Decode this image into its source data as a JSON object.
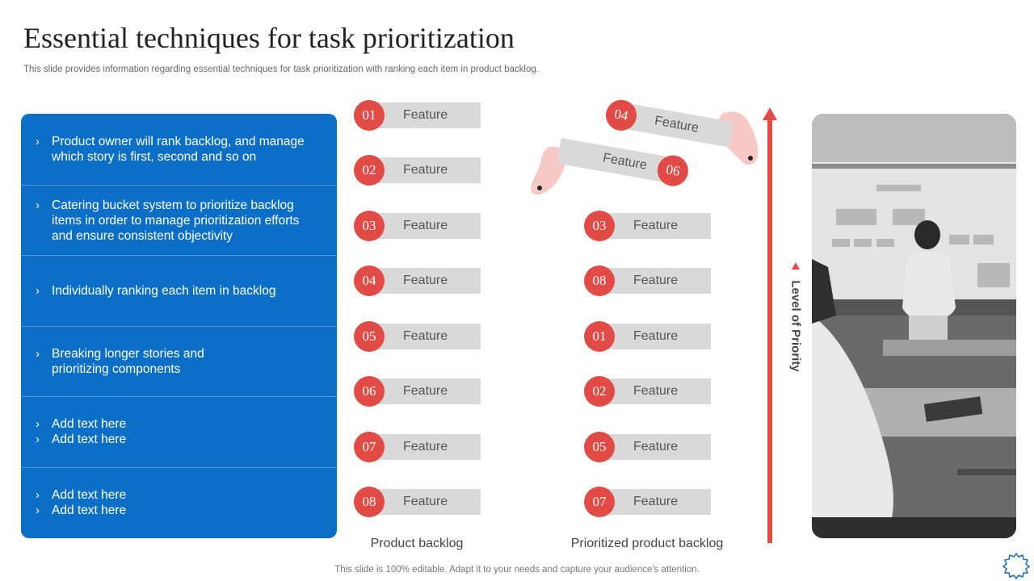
{
  "header": {
    "title": "Essential techniques for task prioritization",
    "subtitle": "This slide provides information regarding essential techniques for task prioritization with ranking each item in product backlog."
  },
  "techniques": [
    {
      "lines": [
        "Product owner will rank backlog, and manage which story is first, second and so on"
      ]
    },
    {
      "lines": [
        "Catering bucket system to prioritize backlog items in order to manage prioritization efforts and ensure consistent objectivity"
      ]
    },
    {
      "lines": [
        "Individually  ranking each item in backlog"
      ]
    },
    {
      "lines": [
        "Breaking longer stories and prioritizing components"
      ]
    },
    {
      "lines": [
        "Add text here",
        "Add text here"
      ]
    },
    {
      "lines": [
        "Add text here",
        "Add text here"
      ]
    }
  ],
  "product_backlog": {
    "label": "Product backlog",
    "items": [
      {
        "num": "01",
        "label": "Feature"
      },
      {
        "num": "02",
        "label": "Feature"
      },
      {
        "num": "03",
        "label": "Feature"
      },
      {
        "num": "04",
        "label": "Feature"
      },
      {
        "num": "05",
        "label": "Feature"
      },
      {
        "num": "06",
        "label": "Feature"
      },
      {
        "num": "07",
        "label": "Feature"
      },
      {
        "num": "08",
        "label": "Feature"
      }
    ]
  },
  "prioritized_backlog": {
    "label": "Prioritized product backlog",
    "moving": [
      {
        "num": "04",
        "label": "Feature"
      },
      {
        "num": "06",
        "label": "Feature"
      }
    ],
    "items": [
      {
        "num": "03",
        "label": "Feature"
      },
      {
        "num": "08",
        "label": "Feature"
      },
      {
        "num": "01",
        "label": "Feature"
      },
      {
        "num": "02",
        "label": "Feature"
      },
      {
        "num": "05",
        "label": "Feature"
      },
      {
        "num": "07",
        "label": "Feature"
      }
    ]
  },
  "priority_axis": {
    "label": "Level of Priority"
  },
  "footer": "This slide is 100% editable. Adapt it to your needs and capture your audience's attention.",
  "colors": {
    "accent_red": "#e24a46",
    "panel_blue": "#0b6fc7",
    "pill_gray": "#d9d9d9"
  },
  "icons": {
    "bullet": "chevron-right-icon",
    "corner": "gear-icon",
    "axis": "arrow-up-icon"
  }
}
